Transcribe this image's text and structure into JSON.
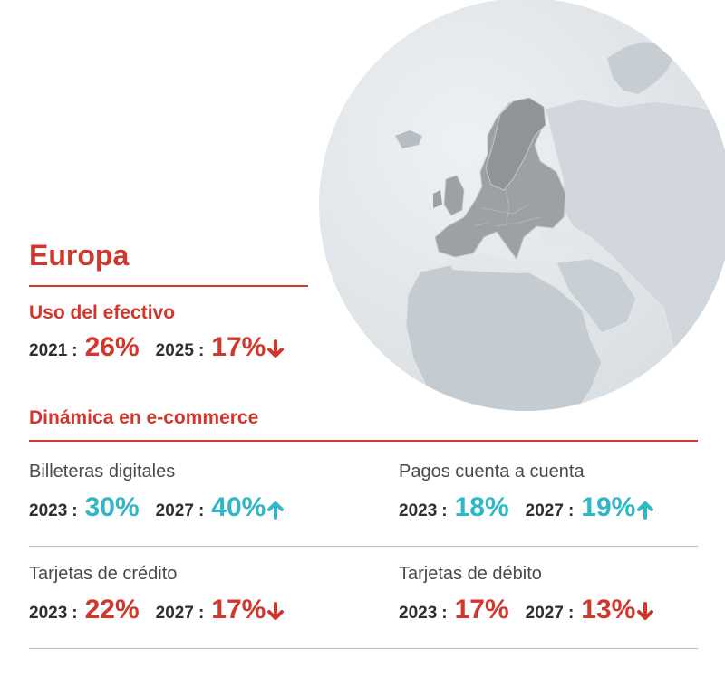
{
  "region": "Europa",
  "cash_usage": {
    "title": "Uso del efectivo",
    "stats": [
      {
        "year": "2021",
        "value": "26%",
        "color": "#d1372c"
      },
      {
        "year": "2025",
        "value": "17%",
        "color": "#d1372c",
        "trend": "down"
      }
    ]
  },
  "ecommerce": {
    "title": "Dinámica en e-commerce",
    "items": [
      {
        "label": "Billeteras digitales",
        "stats": [
          {
            "year": "2023",
            "value": "30%",
            "color": "#2eb7c6"
          },
          {
            "year": "2027",
            "value": "40%",
            "color": "#2eb7c6",
            "trend": "up"
          }
        ]
      },
      {
        "label": "Pagos cuenta a cuenta",
        "stats": [
          {
            "year": "2023",
            "value": "18%",
            "color": "#2eb7c6"
          },
          {
            "year": "2027",
            "value": "19%",
            "color": "#2eb7c6",
            "trend": "up"
          }
        ]
      },
      {
        "label": "Tarjetas de crédito",
        "stats": [
          {
            "year": "2023",
            "value": "22%",
            "color": "#d1372c"
          },
          {
            "year": "2027",
            "value": "17%",
            "color": "#d1372c",
            "trend": "down"
          }
        ]
      },
      {
        "label": "Tarjetas de débito",
        "stats": [
          {
            "year": "2023",
            "value": "17%",
            "color": "#d1372c"
          },
          {
            "year": "2027",
            "value": "13%",
            "color": "#d1372c",
            "trend": "down"
          }
        ]
      }
    ]
  },
  "colors": {
    "accent": "#d1372c",
    "positive": "#2eb7c6",
    "text": "#2f2f2f",
    "divider": "#bdbdbd"
  },
  "icons": {
    "map": "europe-globe-map",
    "down": "arrow-down-icon",
    "up": "arrow-up-icon"
  }
}
